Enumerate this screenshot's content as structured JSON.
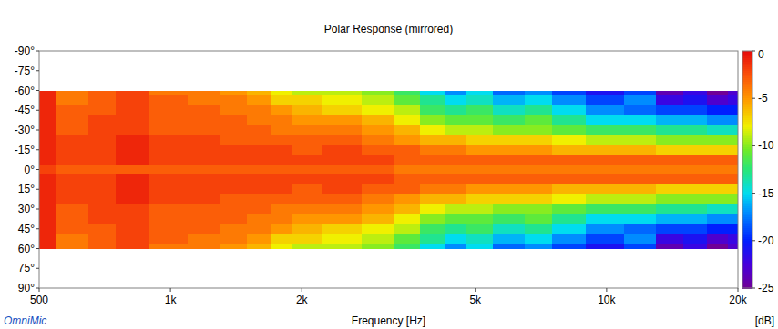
{
  "chart_data": {
    "type": "heatmap",
    "title": "Polar Response (mirrored)",
    "xlabel": "Frequency [Hz]",
    "colorbar_label": "[dB]",
    "annotations": [
      "OmniMic"
    ],
    "log": "x",
    "grid": false,
    "xlim": [
      500,
      20000
    ],
    "xticks": [
      500,
      {
        "value": 1000,
        "label": "1k"
      },
      {
        "value": 2000,
        "label": "2k"
      },
      {
        "value": 5000,
        "label": "5k"
      },
      {
        "value": 10000,
        "label": "10k"
      },
      {
        "value": 20000,
        "label": "20k"
      }
    ],
    "ylim": [
      -90,
      90
    ],
    "yticks": [
      {
        "value": -90,
        "label": "-90°"
      },
      {
        "value": -75,
        "label": "-75°"
      },
      {
        "value": -60,
        "label": "-60°"
      },
      {
        "value": -45,
        "label": "-45°"
      },
      {
        "value": -30,
        "label": "-30°"
      },
      {
        "value": -15,
        "label": "-15°"
      },
      {
        "value": 0,
        "label": "0°"
      },
      {
        "value": 15,
        "label": "15°"
      },
      {
        "value": 30,
        "label": "30°"
      },
      {
        "value": 45,
        "label": "45°"
      },
      {
        "value": 60,
        "label": "60°"
      },
      {
        "value": 75,
        "label": "75°"
      },
      {
        "value": 90,
        "label": "90°"
      }
    ],
    "colorbar_range": [
      -25,
      0
    ],
    "colorbar_ticks": [
      0,
      -5,
      -10,
      -15,
      -20,
      -25
    ],
    "x": [
      500,
      600,
      700,
      800,
      1000,
      1200,
      1400,
      1600,
      1800,
      2000,
      2500,
      3000,
      3500,
      4000,
      4500,
      5000,
      6000,
      7000,
      8000,
      10000,
      12000,
      14000,
      16000,
      18000,
      20000
    ],
    "y": [
      -60,
      -52.5,
      -45,
      -37.5,
      -30,
      -22.5,
      -15,
      -7.5,
      0,
      7.5,
      15,
      22.5,
      30,
      37.5,
      45,
      52.5,
      60
    ],
    "values": [
      [
        -1,
        -4,
        -3,
        -2,
        -4,
        -4,
        -5,
        -6,
        -8,
        -9,
        -9,
        -10,
        -12,
        -15,
        -17,
        -15,
        -18,
        -17,
        -19,
        -21,
        -19,
        -24,
        -22,
        -25,
        -23
      ],
      [
        -1,
        -4,
        -3,
        -2,
        -3,
        -4,
        -4,
        -5,
        -7,
        -7,
        -8,
        -9,
        -11,
        -13,
        -15,
        -14,
        -16,
        -15,
        -17,
        -19,
        -17,
        -22,
        -21,
        -23,
        -22
      ],
      [
        -1,
        -3,
        -3,
        -2,
        -3,
        -3,
        -4,
        -4,
        -5,
        -6,
        -7,
        -8,
        -9,
        -12,
        -13,
        -12,
        -14,
        -13,
        -15,
        -17,
        -18,
        -19,
        -19,
        -20,
        -20
      ],
      [
        -1,
        -3,
        -2,
        -2,
        -3,
        -3,
        -3,
        -4,
        -4,
        -5,
        -5,
        -6,
        -8,
        -10,
        -11,
        -11,
        -12,
        -11,
        -13,
        -15,
        -15,
        -16,
        -16,
        -17,
        -17
      ],
      [
        -1,
        -3,
        -2,
        -2,
        -3,
        -3,
        -3,
        -3,
        -4,
        -4,
        -4,
        -5,
        -6,
        -8,
        -9,
        -9,
        -10,
        -10,
        -11,
        -12,
        -12,
        -13,
        -13,
        -14,
        -14
      ],
      [
        -1,
        -2,
        -2,
        -1,
        -2,
        -2,
        -3,
        -3,
        -3,
        -3,
        -3,
        -4,
        -5,
        -6,
        -6,
        -7,
        -7,
        -7,
        -8,
        -9,
        -9,
        -10,
        -10,
        -10,
        -10
      ],
      [
        -1,
        -2,
        -2,
        -1,
        -2,
        -2,
        -2,
        -2,
        -2,
        -3,
        -2,
        -3,
        -3,
        -4,
        -4,
        -5,
        -5,
        -5,
        -6,
        -6,
        -6,
        -7,
        -7,
        -7,
        -7
      ],
      [
        -1,
        -2,
        -2,
        -1,
        -2,
        -2,
        -2,
        -2,
        -2,
        -2,
        -2,
        -2,
        -3,
        -3,
        -3,
        -3,
        -3,
        -3,
        -3,
        -3,
        -3,
        -3,
        -3,
        -3,
        -3
      ],
      [
        -2,
        -3,
        -3,
        -3,
        -3,
        -3,
        -3,
        -3,
        -3,
        -3,
        -3,
        -3,
        -4,
        -4,
        -4,
        -4,
        -4,
        -4,
        -4,
        -4,
        -4,
        -4,
        -4,
        -4,
        -4
      ],
      [
        -1,
        -2,
        -2,
        -1,
        -2,
        -2,
        -2,
        -2,
        -2,
        -2,
        -2,
        -2,
        -3,
        -3,
        -3,
        -3,
        -3,
        -3,
        -3,
        -3,
        -3,
        -3,
        -3,
        -3,
        -3
      ],
      [
        -1,
        -2,
        -2,
        -1,
        -2,
        -2,
        -2,
        -2,
        -2,
        -3,
        -2,
        -3,
        -3,
        -4,
        -4,
        -5,
        -5,
        -5,
        -6,
        -6,
        -6,
        -7,
        -7,
        -7,
        -7
      ],
      [
        -1,
        -2,
        -2,
        -1,
        -2,
        -2,
        -3,
        -3,
        -3,
        -3,
        -3,
        -4,
        -5,
        -6,
        -6,
        -7,
        -7,
        -7,
        -8,
        -9,
        -9,
        -10,
        -10,
        -10,
        -10
      ],
      [
        -1,
        -3,
        -2,
        -2,
        -3,
        -3,
        -3,
        -3,
        -4,
        -4,
        -4,
        -5,
        -6,
        -8,
        -9,
        -9,
        -10,
        -10,
        -11,
        -12,
        -12,
        -13,
        -13,
        -14,
        -14
      ],
      [
        -1,
        -3,
        -2,
        -2,
        -3,
        -3,
        -3,
        -4,
        -4,
        -5,
        -5,
        -6,
        -8,
        -10,
        -11,
        -11,
        -12,
        -11,
        -13,
        -15,
        -15,
        -16,
        -16,
        -17,
        -17
      ],
      [
        -1,
        -3,
        -3,
        -2,
        -3,
        -3,
        -4,
        -4,
        -5,
        -6,
        -7,
        -8,
        -9,
        -12,
        -13,
        -12,
        -14,
        -13,
        -15,
        -17,
        -18,
        -19,
        -19,
        -20,
        -20
      ],
      [
        -1,
        -4,
        -3,
        -2,
        -3,
        -4,
        -4,
        -5,
        -7,
        -7,
        -8,
        -9,
        -11,
        -13,
        -15,
        -14,
        -16,
        -15,
        -17,
        -19,
        -17,
        -22,
        -21,
        -23,
        -22
      ],
      [
        -1,
        -4,
        -3,
        -2,
        -4,
        -4,
        -5,
        -6,
        -8,
        -9,
        -9,
        -10,
        -12,
        -15,
        -17,
        -15,
        -18,
        -17,
        -19,
        -21,
        -19,
        -24,
        -22,
        -25,
        -23
      ]
    ]
  }
}
